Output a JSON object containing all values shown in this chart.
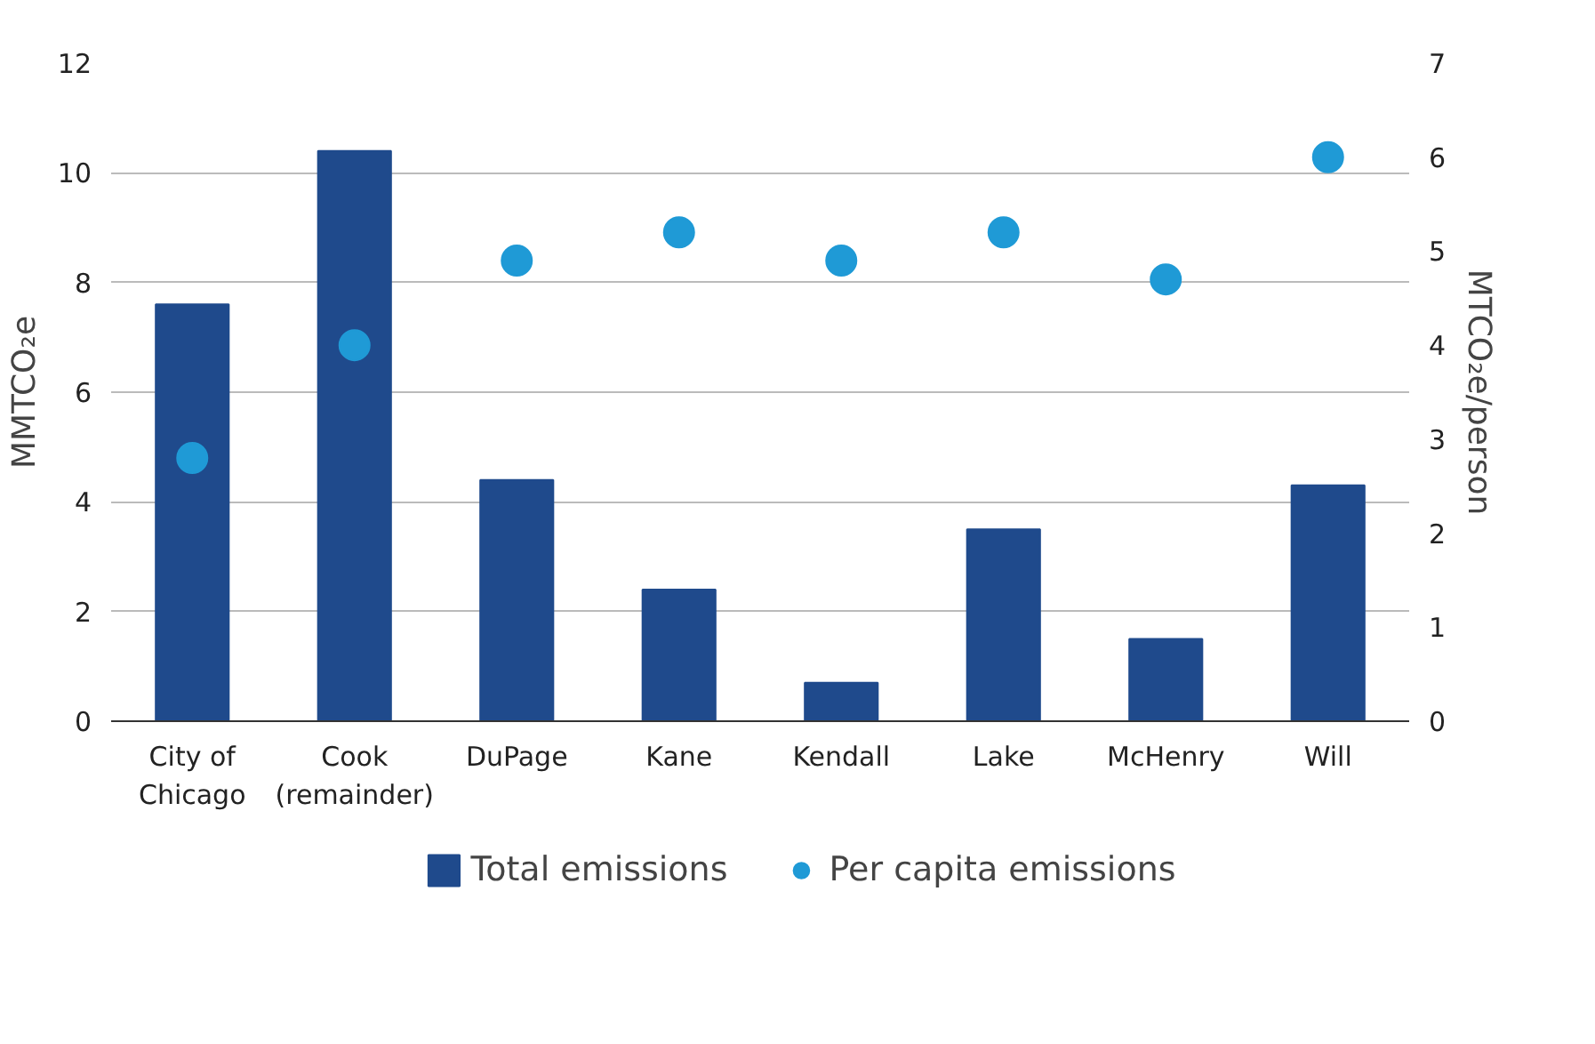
{
  "chart_data": {
    "type": "bar",
    "categories": [
      "City of\nChicago",
      "Cook\n(remainder)",
      "DuPage",
      "Kane",
      "Kendall",
      "Lake",
      "McHenry",
      "Will"
    ],
    "ylabel": "MMTCO₂e",
    "y2label": "MTCO₂e/person",
    "series": [
      {
        "name": "Total emissions",
        "color": "#1f4a8c",
        "values": [
          7.6,
          10.4,
          4.4,
          2.4,
          0.7,
          3.5,
          1.5,
          4.3
        ]
      },
      {
        "name": "Per capita emissions",
        "type": "scatter",
        "axis": "y2",
        "marker": "circle",
        "color": "#1f9ad6",
        "values": [
          2.8,
          4.0,
          4.9,
          5.2,
          4.9,
          5.2,
          4.7,
          6.0
        ]
      }
    ],
    "ylim": [
      0,
      12
    ],
    "yticks": [
      0,
      2,
      4,
      6,
      8,
      10,
      12
    ],
    "y2lim": [
      0,
      7
    ],
    "y2ticks": [
      0,
      1,
      2,
      3,
      4,
      5,
      6,
      7
    ],
    "grid": "y",
    "legend": "bottom"
  }
}
